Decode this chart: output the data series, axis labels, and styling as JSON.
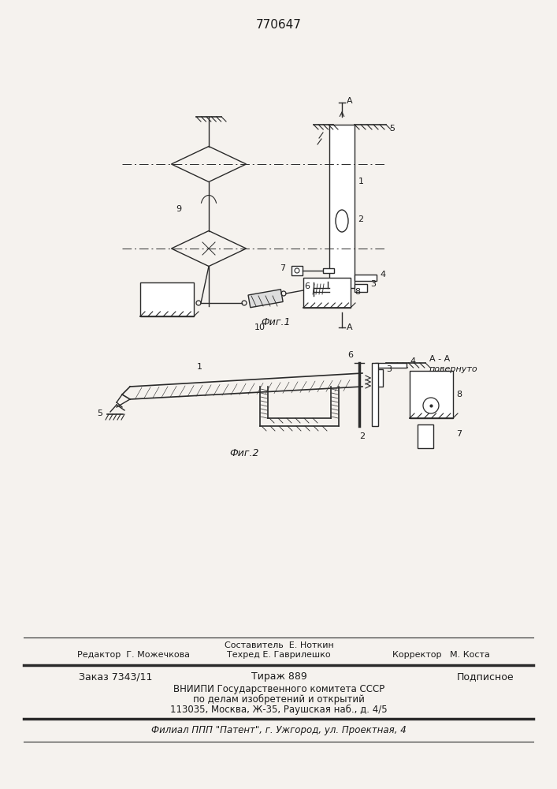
{
  "patent_number": "770647",
  "fig1_label": "Фиг.1",
  "fig2_label": "Фиг.2",
  "aa_label": "A - A",
  "aa_sublabel": "повернуто",
  "footer_sestavitel": "Составитель  Е. Ноткин",
  "footer_redaktor": "Редактор  Г. Можечкова",
  "footer_tekhred": "Техред Е. Гаврилешко",
  "footer_korrektor": "Корректор   М. Коста",
  "footer_zakaz": "Заказ 7343/11",
  "footer_tirazh": "Тираж 889",
  "footer_podpisnoe": "Подписное",
  "footer_vniip1": "ВНИИПИ Государственного комитета СССР",
  "footer_vniip2": "по делам изобретений и открытий",
  "footer_vniip3": "113035, Москва, Ж-35, Раушская наб., д. 4/5",
  "footer_filial": "Филиал ППП \"Патент\", г. Ужгород, ул. Проектная, 4",
  "bg_color": "#f5f2ee",
  "line_color": "#2a2a2a",
  "text_color": "#1a1a1a"
}
